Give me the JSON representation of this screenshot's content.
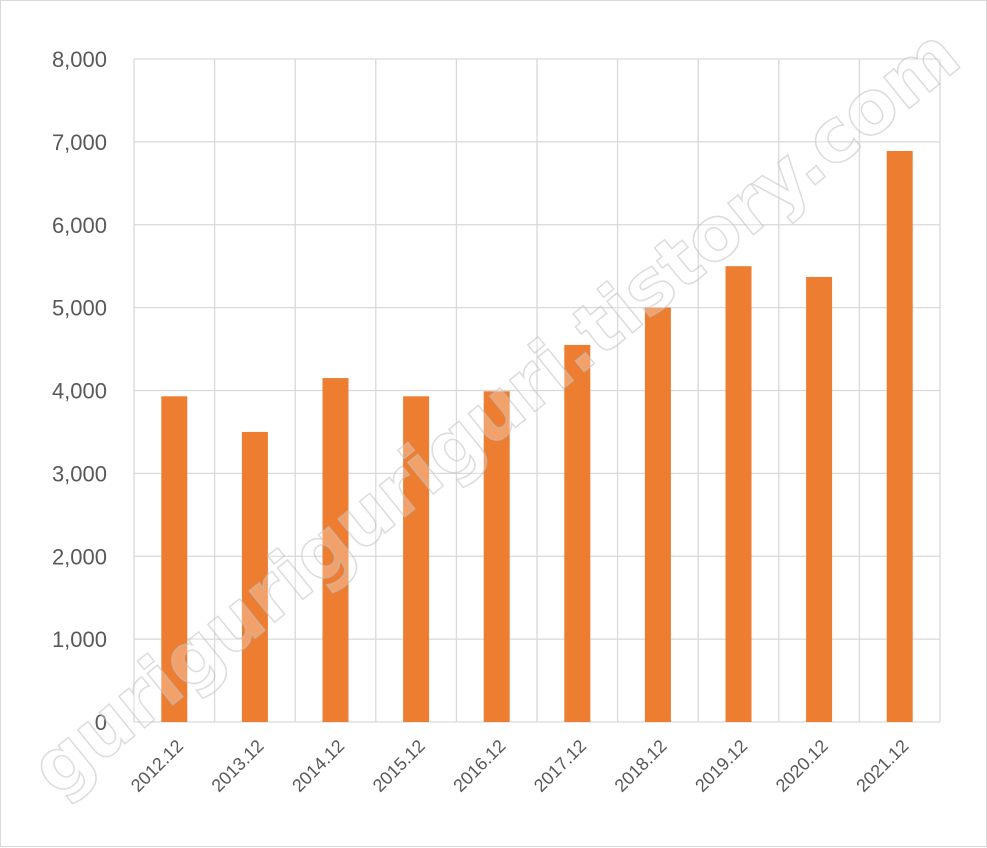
{
  "watermark": "guriguriguriguri.tistory.com",
  "colors": {
    "bar": "#ED7D31",
    "grid": "#D9D9D9",
    "text": "#595959"
  },
  "chart_data": {
    "type": "bar",
    "title": "",
    "xlabel": "",
    "ylabel": "",
    "categories": [
      "2012.12",
      "2013.12",
      "2014.12",
      "2015.12",
      "2016.12",
      "2017.12",
      "2018.12",
      "2019.12",
      "2020.12",
      "2021.12"
    ],
    "values": [
      3930,
      3500,
      4150,
      3930,
      3990,
      4550,
      5000,
      5500,
      5370,
      6890
    ],
    "ylim": [
      0,
      8000
    ],
    "yticks": [
      "0",
      "1,000",
      "2,000",
      "3,000",
      "4,000",
      "5,000",
      "6,000",
      "7,000",
      "8,000"
    ],
    "grid": true,
    "legend": "none"
  }
}
